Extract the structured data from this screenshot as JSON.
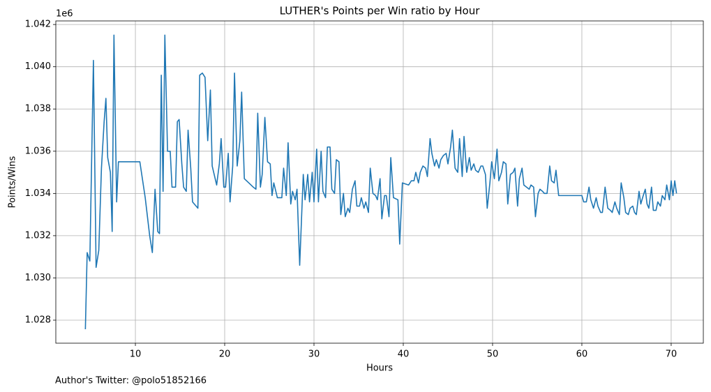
{
  "chart_data": {
    "type": "line",
    "title": "LUTHER's Points per Win ratio by Hour",
    "xlabel": "Hours",
    "ylabel": "Points/Wins",
    "offset_label": "1e6",
    "footer": "Author's Twitter: @polo51852166",
    "color": "#1f77b4",
    "grid": true,
    "xlim": [
      1.09,
      73.6
    ],
    "xticks": [
      10,
      20,
      30,
      40,
      50,
      60,
      70
    ],
    "ylim": [
      1.02691,
      1.04217
    ],
    "yticks": [
      1.028,
      {
        "value": 1.03,
        "label": "1.030"
      },
      1.032,
      1.034,
      1.036,
      1.038,
      {
        "value": 1.04,
        "label": "1.040"
      },
      1.042
    ],
    "x": [
      4.4,
      4.6,
      4.9,
      5.3,
      5.6,
      5.9,
      6.2,
      6.5,
      6.7,
      6.9,
      7.2,
      7.4,
      7.6,
      7.9,
      8.1,
      10.5,
      11.1,
      11.6,
      11.9,
      12.2,
      12.5,
      12.7,
      12.9,
      13.1,
      13.3,
      13.6,
      13.9,
      14.1,
      14.5,
      14.7,
      14.9,
      15.2,
      15.4,
      15.7,
      15.9,
      16.2,
      16.4,
      17.0,
      17.2,
      17.5,
      17.8,
      18.1,
      18.4,
      18.6,
      19.1,
      19.4,
      19.6,
      19.9,
      20.1,
      20.4,
      20.6,
      20.9,
      21.1,
      21.4,
      21.7,
      21.9,
      22.2,
      22.7,
      23.2,
      23.5,
      23.7,
      24.0,
      24.2,
      24.5,
      24.8,
      25.1,
      25.3,
      25.5,
      25.9,
      26.4,
      26.6,
      26.9,
      27.1,
      27.4,
      27.6,
      27.9,
      28.1,
      28.4,
      28.8,
      29.0,
      29.3,
      29.5,
      29.8,
      30.0,
      30.3,
      30.5,
      30.8,
      31.0,
      31.3,
      31.5,
      31.8,
      32.0,
      32.3,
      32.5,
      32.8,
      33.0,
      33.3,
      33.5,
      33.8,
      34.0,
      34.3,
      34.6,
      34.8,
      35.1,
      35.3,
      35.6,
      35.8,
      36.1,
      36.3,
      36.6,
      36.9,
      37.1,
      37.4,
      37.6,
      37.9,
      38.1,
      38.4,
      38.6,
      38.9,
      39.4,
      39.6,
      39.9,
      40.6,
      40.9,
      41.2,
      41.4,
      41.7,
      41.9,
      42.2,
      42.5,
      42.7,
      43.0,
      43.2,
      43.5,
      43.7,
      44.0,
      44.2,
      44.5,
      44.8,
      45.0,
      45.3,
      45.5,
      45.8,
      46.1,
      46.3,
      46.6,
      46.8,
      47.1,
      47.4,
      47.6,
      47.9,
      48.1,
      48.4,
      48.7,
      48.9,
      49.2,
      49.4,
      49.7,
      49.9,
      50.2,
      50.5,
      50.7,
      51.0,
      51.2,
      51.5,
      51.7,
      52.0,
      52.3,
      52.5,
      52.8,
      53.0,
      53.3,
      53.5,
      53.8,
      54.1,
      54.3,
      54.6,
      54.8,
      55.1,
      55.3,
      55.6,
      55.8,
      56.1,
      56.4,
      56.6,
      56.9,
      57.1,
      57.4,
      59.7,
      60.0,
      60.2,
      60.5,
      60.8,
      61.0,
      61.3,
      61.6,
      61.8,
      62.1,
      62.3,
      62.6,
      62.9,
      63.2,
      63.4,
      63.7,
      63.9,
      64.2,
      64.4,
      64.7,
      64.9,
      65.2,
      65.4,
      65.7,
      65.9,
      66.1,
      66.4,
      66.6,
      66.8,
      67.1,
      67.3,
      67.5,
      67.8,
      68.0,
      68.3,
      68.5,
      68.8,
      69.0,
      69.3,
      69.5,
      69.8,
      70.0,
      70.2,
      70.4,
      70.6
    ],
    "values": [
      1.02757,
      1.0312,
      1.0308,
      1.0403,
      1.0305,
      1.0313,
      1.0352,
      1.0374,
      1.0385,
      1.0357,
      1.035,
      1.0322,
      1.0415,
      1.0336,
      1.0355,
      1.0355,
      1.0338,
      1.032,
      1.0312,
      1.0342,
      1.0322,
      1.0321,
      1.0396,
      1.0341,
      1.0415,
      1.036,
      1.036,
      1.0343,
      1.0343,
      1.0374,
      1.0375,
      1.0354,
      1.0343,
      1.0341,
      1.037,
      1.0352,
      1.0336,
      1.0333,
      1.0396,
      1.0397,
      1.0395,
      1.0365,
      1.0389,
      1.0353,
      1.0344,
      1.0354,
      1.0366,
      1.0343,
      1.0343,
      1.0359,
      1.0336,
      1.0353,
      1.0397,
      1.0353,
      1.0365,
      1.0388,
      1.0347,
      1.0345,
      1.0343,
      1.0342,
      1.0378,
      1.0343,
      1.0349,
      1.0376,
      1.0355,
      1.0354,
      1.0339,
      1.0345,
      1.0338,
      1.0338,
      1.0352,
      1.0339,
      1.0364,
      1.0335,
      1.0341,
      1.0337,
      1.0342,
      1.0306,
      1.0349,
      1.0337,
      1.0349,
      1.0336,
      1.035,
      1.0336,
      1.0361,
      1.0336,
      1.036,
      1.0341,
      1.0338,
      1.0362,
      1.0362,
      1.0342,
      1.034,
      1.0356,
      1.0355,
      1.033,
      1.034,
      1.0329,
      1.0333,
      1.0331,
      1.0342,
      1.0346,
      1.0334,
      1.0334,
      1.0338,
      1.0333,
      1.0336,
      1.0331,
      1.0352,
      1.034,
      1.0339,
      1.0337,
      1.0347,
      1.0328,
      1.0339,
      1.0339,
      1.0329,
      1.0357,
      1.0338,
      1.0337,
      1.0316,
      1.0345,
      1.0344,
      1.0346,
      1.0346,
      1.035,
      1.0345,
      1.035,
      1.0353,
      1.0352,
      1.0348,
      1.0366,
      1.0359,
      1.0353,
      1.0356,
      1.0352,
      1.0356,
      1.0358,
      1.0359,
      1.0354,
      1.0362,
      1.037,
      1.0352,
      1.035,
      1.0366,
      1.0348,
      1.0367,
      1.035,
      1.0357,
      1.0351,
      1.0354,
      1.0351,
      1.035,
      1.0353,
      1.0353,
      1.0349,
      1.0333,
      1.0345,
      1.0355,
      1.0347,
      1.0361,
      1.0346,
      1.035,
      1.0355,
      1.0354,
      1.0335,
      1.0349,
      1.035,
      1.0352,
      1.0334,
      1.0347,
      1.0352,
      1.0344,
      1.0343,
      1.0342,
      1.0344,
      1.0343,
      1.0329,
      1.034,
      1.0342,
      1.0341,
      1.034,
      1.034,
      1.0353,
      1.0346,
      1.0345,
      1.0351,
      1.0339,
      1.0339,
      1.0339,
      1.0336,
      1.0336,
      1.0343,
      1.0337,
      1.0333,
      1.0338,
      1.0334,
      1.0331,
      1.0331,
      1.0343,
      1.0333,
      1.0332,
      1.0331,
      1.0336,
      1.0333,
      1.033,
      1.0345,
      1.0338,
      1.0331,
      1.033,
      1.0333,
      1.0334,
      1.0331,
      1.033,
      1.0341,
      1.0335,
      1.0338,
      1.0342,
      1.0335,
      1.0333,
      1.0343,
      1.0332,
      1.0332,
      1.0336,
      1.0334,
      1.0339,
      1.0337,
      1.0344,
      1.0337,
      1.0346,
      1.0339,
      1.0346,
      1.034
    ]
  }
}
